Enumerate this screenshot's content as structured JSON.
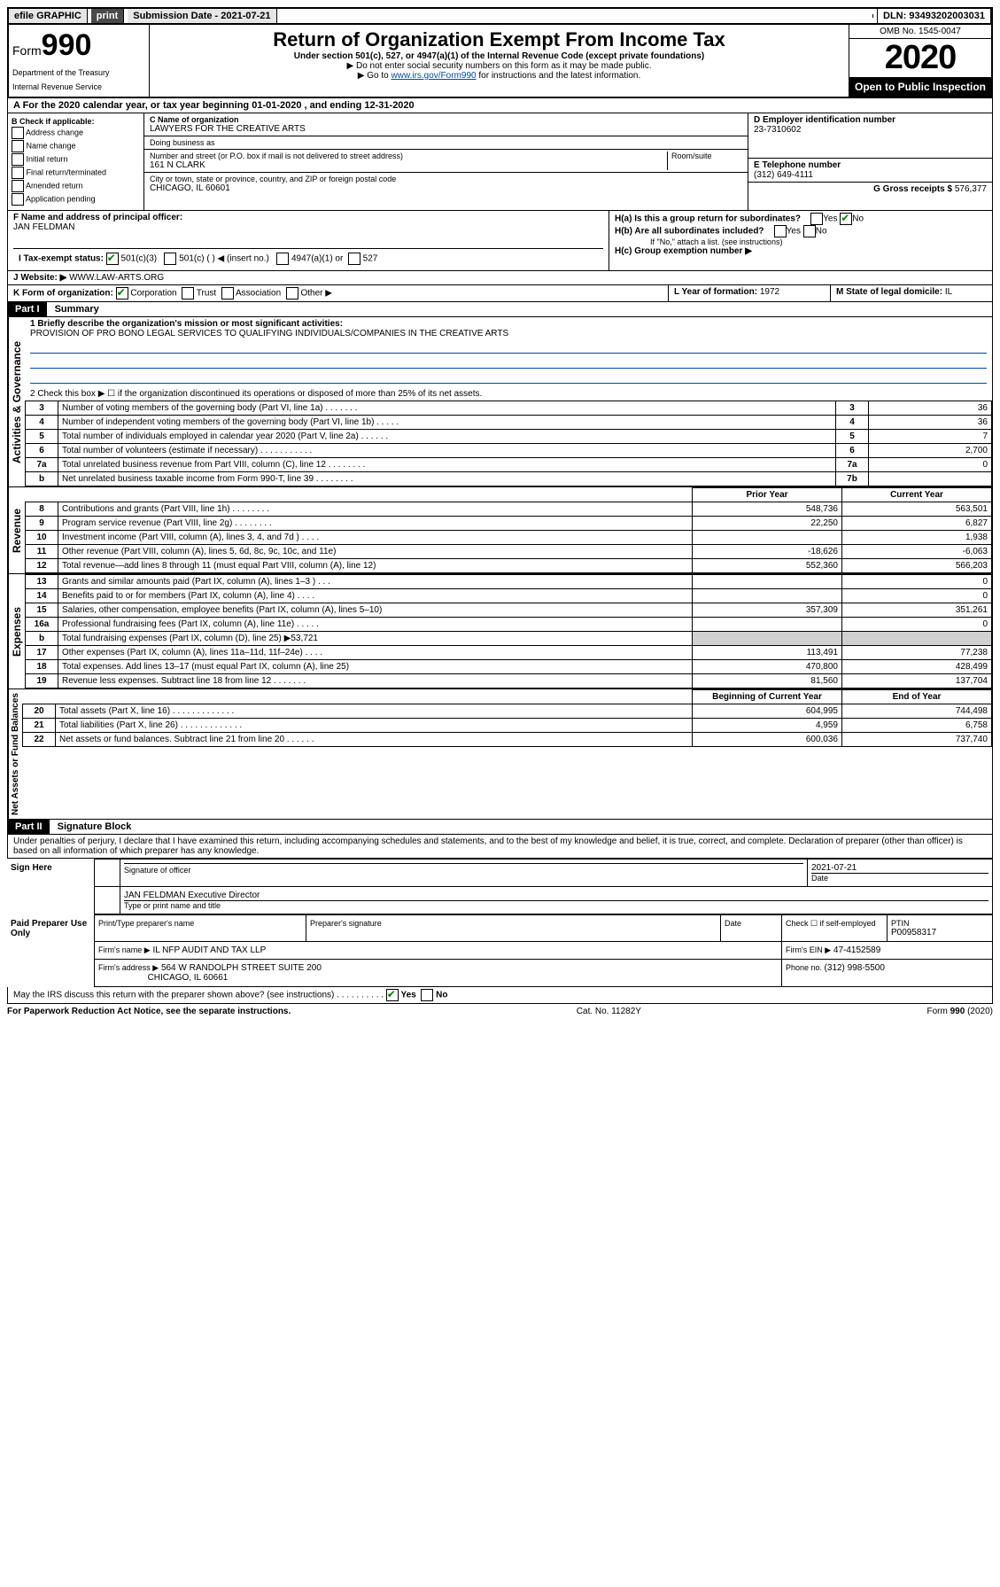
{
  "topbar": {
    "efile": "efile GRAPHIC",
    "print": "print",
    "submission_label": "Submission Date - 2021-07-21",
    "dln": "DLN: 93493202003031"
  },
  "header": {
    "form_prefix": "Form",
    "form_number": "990",
    "dept1": "Department of the Treasury",
    "dept2": "Internal Revenue Service",
    "title": "Return of Organization Exempt From Income Tax",
    "subtitle": "Under section 501(c), 527, or 4947(a)(1) of the Internal Revenue Code (except private foundations)",
    "note1": "▶ Do not enter social security numbers on this form as it may be made public.",
    "note2_pre": "▶ Go to ",
    "note2_link": "www.irs.gov/Form990",
    "note2_post": " for instructions and the latest information.",
    "omb": "OMB No. 1545-0047",
    "year": "2020",
    "open_public": "Open to Public Inspection"
  },
  "lineA": {
    "text_pre": "A For the 2020 calendar year, or tax year beginning ",
    "begin": "01-01-2020",
    "mid": " , and ending ",
    "end": "12-31-2020"
  },
  "sectionB": {
    "heading": "B Check if applicable:",
    "items": [
      "Address change",
      "Name change",
      "Initial return",
      "Final return/terminated",
      "Amended return",
      "Application pending"
    ]
  },
  "sectionC": {
    "name_label": "C Name of organization",
    "name": "LAWYERS FOR THE CREATIVE ARTS",
    "dba_label": "Doing business as",
    "addr_label": "Number and street (or P.O. box if mail is not delivered to street address)",
    "room_label": "Room/suite",
    "addr": "161 N CLARK",
    "city_label": "City or town, state or province, country, and ZIP or foreign postal code",
    "city": "CHICAGO, IL  60601"
  },
  "sectionD": {
    "label": "D Employer identification number",
    "value": "23-7310602"
  },
  "sectionE": {
    "label": "E Telephone number",
    "value": "(312) 649-4111"
  },
  "sectionG": {
    "label": "G Gross receipts $ ",
    "value": "576,377"
  },
  "sectionF": {
    "label": "F Name and address of principal officer:",
    "name": "JAN FELDMAN"
  },
  "sectionH": {
    "ha": "H(a)  Is this a group return for subordinates?",
    "hb": "H(b)  Are all subordinates included?",
    "hb_note": "If \"No,\" attach a list. (see instructions)",
    "hc": "H(c)  Group exemption number ▶",
    "yes": "Yes",
    "no": "No"
  },
  "sectionI": {
    "label": "I  Tax-exempt status:",
    "opt1": "501(c)(3)",
    "opt2": "501(c) (   ) ◀ (insert no.)",
    "opt3": "4947(a)(1) or",
    "opt4": "527"
  },
  "sectionJ": {
    "label": "J  Website: ▶",
    "value": "WWW.LAW-ARTS.ORG"
  },
  "sectionK": {
    "label": "K Form of organization:",
    "opts": [
      "Corporation",
      "Trust",
      "Association",
      "Other ▶"
    ]
  },
  "sectionL": {
    "label": "L Year of formation: ",
    "value": "1972"
  },
  "sectionM": {
    "label": "M State of legal domicile: ",
    "value": "IL"
  },
  "part1": {
    "header": "Part I",
    "title": "Summary",
    "line1_label": "1  Briefly describe the organization's mission or most significant activities:",
    "line1_value": "PROVISION OF PRO BONO LEGAL SERVICES TO QUALIFYING INDIVIDUALS/COMPANIES IN THE CREATIVE ARTS",
    "line2": "2   Check this box ▶ ☐  if the organization discontinued its operations or disposed of more than 25% of its net assets.",
    "governance_label": "Activities & Governance",
    "revenue_label": "Revenue",
    "expenses_label": "Expenses",
    "netassets_label": "Net Assets or Fund Balances",
    "prior_year_hdr": "Prior Year",
    "current_year_hdr": "Current Year",
    "begin_hdr": "Beginning of Current Year",
    "end_hdr": "End of Year",
    "rows_gov": [
      {
        "n": "3",
        "t": "Number of voting members of the governing body (Part VI, line 1a)  .    .    .    .    .    .    .",
        "box": "3",
        "v": "36"
      },
      {
        "n": "4",
        "t": "Number of independent voting members of the governing body (Part VI, line 1b)   .    .    .    .    .",
        "box": "4",
        "v": "36"
      },
      {
        "n": "5",
        "t": "Total number of individuals employed in calendar year 2020 (Part V, line 2a)   .    .    .    .    .    .",
        "box": "5",
        "v": "7"
      },
      {
        "n": "6",
        "t": "Total number of volunteers (estimate if necessary)    .    .    .    .    .    .    .    .    .    .    .",
        "box": "6",
        "v": "2,700"
      },
      {
        "n": "7a",
        "t": "Total unrelated business revenue from Part VIII, column (C), line 12  .    .    .    .    .    .    .    .",
        "box": "7a",
        "v": "0"
      },
      {
        "n": "b",
        "t": "Net unrelated business taxable income from Form 990-T, line 39    .    .    .    .    .    .    .    .",
        "box": "7b",
        "v": ""
      }
    ],
    "rows_rev": [
      {
        "n": "8",
        "t": "Contributions and grants (Part VIII, line 1h)   .    .    .    .    .    .    .    .",
        "p": "548,736",
        "c": "563,501"
      },
      {
        "n": "9",
        "t": "Program service revenue (Part VIII, line 2g)   .    .    .    .    .    .    .    .",
        "p": "22,250",
        "c": "6,827"
      },
      {
        "n": "10",
        "t": "Investment income (Part VIII, column (A), lines 3, 4, and 7d )   .    .    .    .",
        "p": "",
        "c": "1,938"
      },
      {
        "n": "11",
        "t": "Other revenue (Part VIII, column (A), lines 5, 6d, 8c, 9c, 10c, and 11e)",
        "p": "-18,626",
        "c": "-6,063"
      },
      {
        "n": "12",
        "t": "Total revenue—add lines 8 through 11 (must equal Part VIII, column (A), line 12)",
        "p": "552,360",
        "c": "566,203"
      }
    ],
    "rows_exp": [
      {
        "n": "13",
        "t": "Grants and similar amounts paid (Part IX, column (A), lines 1–3 )   .    .    .",
        "p": "",
        "c": "0"
      },
      {
        "n": "14",
        "t": "Benefits paid to or for members (Part IX, column (A), line 4)   .    .    .    .",
        "p": "",
        "c": "0"
      },
      {
        "n": "15",
        "t": "Salaries, other compensation, employee benefits (Part IX, column (A), lines 5–10)",
        "p": "357,309",
        "c": "351,261"
      },
      {
        "n": "16a",
        "t": "Professional fundraising fees (Part IX, column (A), line 11e)   .    .    .    .    .",
        "p": "",
        "c": "0"
      },
      {
        "n": "b",
        "t": "Total fundraising expenses (Part IX, column (D), line 25) ▶53,721",
        "p": "SHADE",
        "c": "SHADE"
      },
      {
        "n": "17",
        "t": "Other expenses (Part IX, column (A), lines 11a–11d, 11f–24e)    .    .    .    .",
        "p": "113,491",
        "c": "77,238"
      },
      {
        "n": "18",
        "t": "Total expenses. Add lines 13–17 (must equal Part IX, column (A), line 25)",
        "p": "470,800",
        "c": "428,499"
      },
      {
        "n": "19",
        "t": "Revenue less expenses. Subtract line 18 from line 12   .    .    .    .    .    .    .",
        "p": "81,560",
        "c": "137,704"
      }
    ],
    "rows_net": [
      {
        "n": "20",
        "t": "Total assets (Part X, line 16)   .    .    .    .    .    .    .    .    .    .    .    .    .",
        "p": "604,995",
        "c": "744,498"
      },
      {
        "n": "21",
        "t": "Total liabilities (Part X, line 26)  .    .    .    .    .    .    .    .    .    .    .    .    .",
        "p": "4,959",
        "c": "6,758"
      },
      {
        "n": "22",
        "t": "Net assets or fund balances. Subtract line 21 from line 20   .    .    .    .    .    .",
        "p": "600,036",
        "c": "737,740"
      }
    ]
  },
  "part2": {
    "header": "Part II",
    "title": "Signature Block",
    "perjury": "Under penalties of perjury, I declare that I have examined this return, including accompanying schedules and statements, and to the best of my knowledge and belief, it is true, correct, and complete. Declaration of preparer (other than officer) is based on all information of which preparer has any knowledge.",
    "sign_here": "Sign Here",
    "sig_officer_label": "Signature of officer",
    "date_label": "Date",
    "date_value": "2021-07-21",
    "name_title": "JAN FELDMAN  Executive Director",
    "name_title_label": "Type or print name and title",
    "paid": "Paid Preparer Use Only",
    "prep_name_label": "Print/Type preparer's name",
    "prep_sig_label": "Preparer's signature",
    "check_self": "Check ☐ if self-employed",
    "ptin_label": "PTIN",
    "ptin": "P00958317",
    "firm_name_label": "Firm's name    ▶",
    "firm_name": "IL NFP AUDIT AND TAX LLP",
    "firm_ein_label": "Firm's EIN ▶",
    "firm_ein": "47-4152589",
    "firm_addr_label": "Firm's address ▶",
    "firm_addr1": "564 W RANDOLPH STREET SUITE 200",
    "firm_addr2": "CHICAGO, IL  60661",
    "phone_label": "Phone no. ",
    "phone": "(312) 998-5500",
    "discuss": "May the IRS discuss this return with the preparer shown above? (see instructions)    .    .    .    .    .    .    .    .    .    .",
    "yes": "Yes",
    "no": "No"
  },
  "footer": {
    "paperwork": "For Paperwork Reduction Act Notice, see the separate instructions.",
    "cat": "Cat. No. 11282Y",
    "form": "Form 990 (2020)"
  }
}
